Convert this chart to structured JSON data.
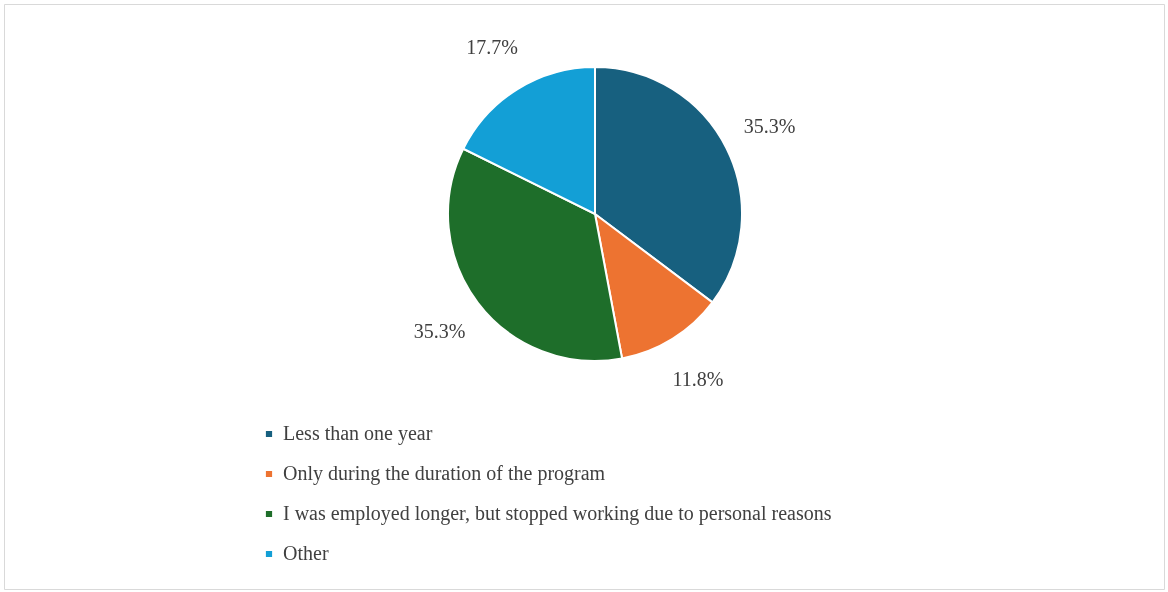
{
  "chart_data": {
    "type": "pie",
    "categories": [
      "Less than one year",
      "Only during the duration of the program",
      "I was employed longer, but stopped working due to personal reasons",
      "Other"
    ],
    "values": [
      35.3,
      11.8,
      35.3,
      17.7
    ],
    "value_labels": [
      "35.3%",
      "11.8%",
      "35.3%",
      "17.7%"
    ],
    "colors": [
      "#17607f",
      "#ed7331",
      "#1e6e2a",
      "#139fd6"
    ],
    "legend": "bottom"
  }
}
